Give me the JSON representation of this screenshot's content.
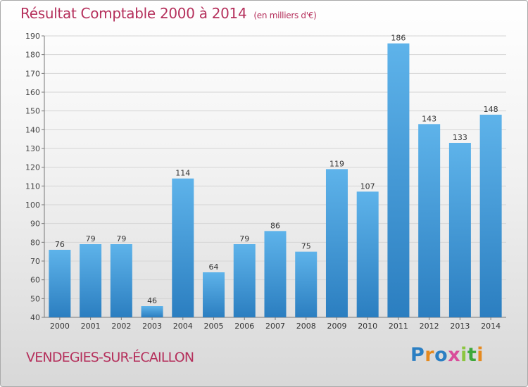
{
  "header": {
    "title": "Résultat Comptable 2000 à 2014",
    "unit": "(en milliers d'€)"
  },
  "footer": {
    "commune": "VENDEGIES-SUR-ÉCAILLON",
    "brand": "Proxiti"
  },
  "colors": {
    "title": "#b5305c",
    "bar_top": "#5eb3ea",
    "bar_bottom": "#2b7ec0",
    "grid": "#d5d5d5"
  },
  "chart_data": {
    "type": "bar",
    "title": "Résultat Comptable 2000 à 2014",
    "subtitle": "(en milliers d'€)",
    "categories": [
      "2000",
      "2001",
      "2002",
      "2003",
      "2004",
      "2005",
      "2006",
      "2007",
      "2008",
      "2009",
      "2010",
      "2011",
      "2012",
      "2013",
      "2014"
    ],
    "values": [
      76,
      79,
      79,
      46,
      114,
      64,
      79,
      86,
      75,
      119,
      107,
      186,
      143,
      133,
      148
    ],
    "ylim": [
      40,
      190
    ],
    "yticks": [
      40,
      50,
      60,
      70,
      80,
      90,
      100,
      110,
      120,
      130,
      140,
      150,
      160,
      170,
      180,
      190
    ],
    "xlabel": "",
    "ylabel": "",
    "grid": true,
    "data_labels": true
  }
}
